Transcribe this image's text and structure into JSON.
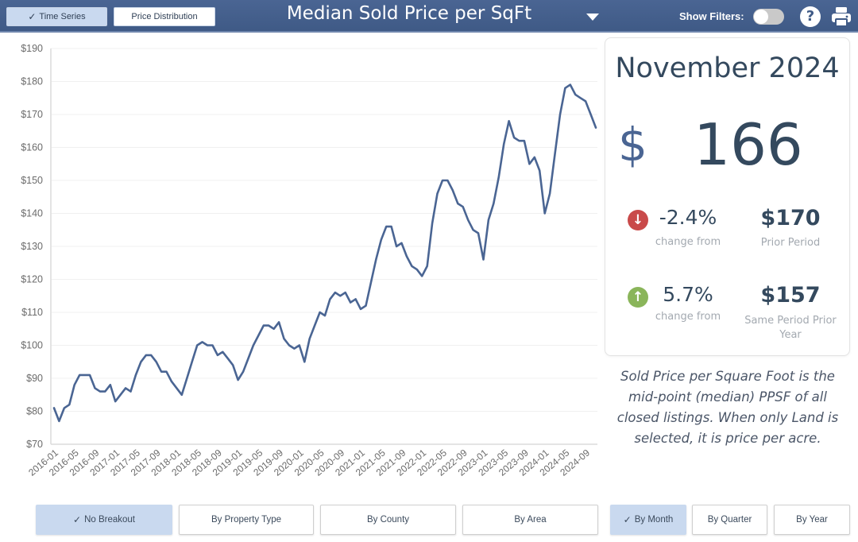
{
  "header": {
    "tabs": [
      {
        "label": "Time Series",
        "active": true
      },
      {
        "label": "Price Distribution",
        "active": false
      }
    ],
    "title": "Median Sold Price per SqFt",
    "show_filters_label": "Show Filters:",
    "show_filters_on": false,
    "help_glyph": "?",
    "icons": [
      "caret-down-icon",
      "toggle-switch",
      "help-icon",
      "print-icon"
    ]
  },
  "kpi": {
    "period": "November 2024",
    "currency_symbol": "$",
    "value": "166",
    "prior_change": {
      "direction": "down",
      "pct": "-2.4%",
      "sub": "change from",
      "value": "$170",
      "label": "Prior Period"
    },
    "year_change": {
      "direction": "up",
      "pct": "5.7%",
      "sub": "change from",
      "value": "$157",
      "label_line1": "Same Period Prior",
      "label_line2": "Year"
    },
    "colors": {
      "down": "#c94a4a",
      "up": "#8ab55a"
    }
  },
  "note": "Sold Price per Square Foot is the mid-point (median) PPSF of all closed listings. When only Land is selected, it is price per acre.",
  "breakout_buttons": [
    {
      "label": "No Breakout",
      "active": true
    },
    {
      "label": "By Property Type",
      "active": false
    },
    {
      "label": "By County",
      "active": false
    },
    {
      "label": "By Area",
      "active": false
    }
  ],
  "period_buttons": [
    {
      "label": "By Month",
      "active": true
    },
    {
      "label": "By Quarter",
      "active": false
    },
    {
      "label": "By Year",
      "active": false
    }
  ],
  "chart_data": {
    "type": "line",
    "title": "Median Sold Price per SqFt",
    "xlabel": "",
    "ylabel": "",
    "ylim": [
      70,
      190
    ],
    "yticks": [
      70,
      80,
      90,
      100,
      110,
      120,
      130,
      140,
      150,
      160,
      170,
      180,
      190
    ],
    "ytick_prefix": "$",
    "grid": true,
    "line_color": "#4a6593",
    "x_start": "2016-01",
    "xtick_labels": [
      "2016-01",
      "2016-05",
      "2016-09",
      "2017-01",
      "2017-05",
      "2017-09",
      "2018-01",
      "2018-05",
      "2018-09",
      "2019-01",
      "2019-05",
      "2019-09",
      "2020-01",
      "2020-05",
      "2020-09",
      "2021-01",
      "2021-05",
      "2021-09",
      "2022-01",
      "2022-05",
      "2022-09",
      "2023-01",
      "2023-05",
      "2023-09",
      "2024-01",
      "2024-05",
      "2024-09"
    ],
    "series": [
      {
        "name": "Median Sold Price per SqFt",
        "values": [
          81,
          77,
          81,
          82,
          88,
          91,
          91,
          91,
          87,
          86,
          86,
          88,
          83,
          85,
          87,
          86,
          91,
          95,
          97,
          97,
          95,
          92,
          92,
          89,
          87,
          85,
          90,
          95,
          100,
          101,
          100,
          100,
          97,
          98,
          96,
          94,
          89.5,
          92,
          96,
          100,
          103,
          106,
          106,
          105,
          107,
          102,
          100,
          99,
          100,
          95,
          102,
          106,
          110,
          109,
          114,
          116,
          115,
          116,
          113,
          114,
          111,
          112,
          119,
          126,
          132,
          136,
          136,
          130,
          131,
          127,
          124,
          123,
          121,
          124,
          137,
          146,
          150,
          150,
          147,
          143,
          142,
          138,
          135,
          134,
          126,
          138,
          143,
          151,
          161,
          168,
          163,
          162,
          162,
          155,
          157,
          153,
          140,
          146,
          158,
          170,
          178,
          179,
          176,
          175,
          174,
          170,
          166
        ]
      }
    ]
  }
}
